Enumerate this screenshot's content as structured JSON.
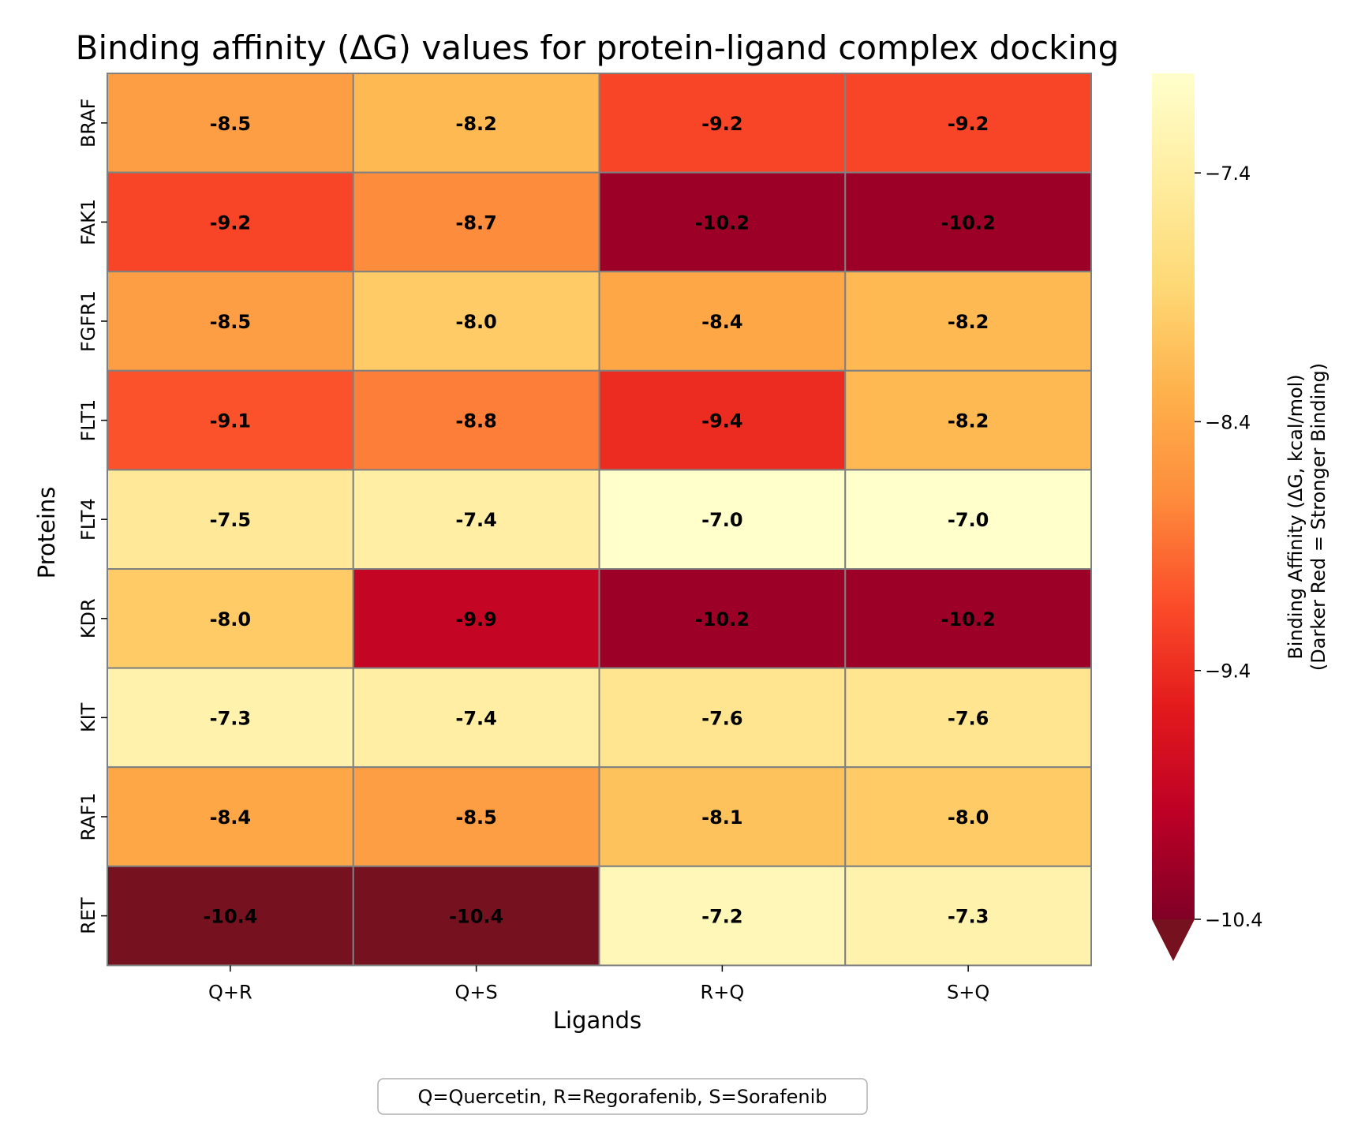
{
  "chart_data": {
    "type": "heatmap",
    "title": "Binding affinity (ΔG) values for protein-ligand complex docking",
    "xlabel": "Ligands",
    "ylabel": "Proteins",
    "x_categories": [
      "Q+R",
      "Q+S",
      "R+Q",
      "S+Q"
    ],
    "y_categories": [
      "BRAF",
      "FAK1",
      "FGFR1",
      "FLT1",
      "FLT4",
      "KDR",
      "KIT",
      "RAF1",
      "RET"
    ],
    "values": [
      [
        -8.5,
        -8.2,
        -9.2,
        -9.2
      ],
      [
        -9.2,
        -8.7,
        -10.2,
        -10.2
      ],
      [
        -8.5,
        -8.0,
        -8.4,
        -8.2
      ],
      [
        -9.1,
        -8.8,
        -9.4,
        -8.2
      ],
      [
        -7.5,
        -7.4,
        -7.0,
        -7.0
      ],
      [
        -8.0,
        -9.9,
        -10.2,
        -10.2
      ],
      [
        -7.3,
        -7.4,
        -7.6,
        -7.6
      ],
      [
        -8.4,
        -8.5,
        -8.1,
        -8.0
      ],
      [
        -10.4,
        -10.4,
        -7.2,
        -7.3
      ]
    ],
    "value_labels": [
      [
        "-8.5",
        "-8.2",
        "-9.2",
        "-9.2"
      ],
      [
        "-9.2",
        "-8.7",
        "-10.2",
        "-10.2"
      ],
      [
        "-8.5",
        "-8.0",
        "-8.4",
        "-8.2"
      ],
      [
        "-9.1",
        "-8.8",
        "-9.4",
        "-8.2"
      ],
      [
        "-7.5",
        "-7.4",
        "-7.0",
        "-7.0"
      ],
      [
        "-8.0",
        "-9.9",
        "-10.2",
        "-10.2"
      ],
      [
        "-7.3",
        "-7.4",
        "-7.6",
        "-7.6"
      ],
      [
        "-8.4",
        "-8.5",
        "-8.1",
        "-8.0"
      ],
      [
        "-10.4",
        "-10.4",
        "-7.2",
        "-7.3"
      ]
    ],
    "colorbar": {
      "label_line1": "Binding Affinity (ΔG, kcal/mol)",
      "label_line2": "(Darker Red = Stronger Binding)",
      "range": [
        -10.4,
        -7.0
      ],
      "ticks": [
        -7.4,
        -8.4,
        -9.4,
        -10.4
      ],
      "tick_labels": [
        "−7.4",
        "−8.4",
        "−9.4",
        "−10.4"
      ],
      "colormap": "YlOrRd",
      "extend": "min"
    },
    "annotation": "Q=Quercetin, R=Regorafenib, S=Sorafenib",
    "grid_color": "#808080"
  }
}
